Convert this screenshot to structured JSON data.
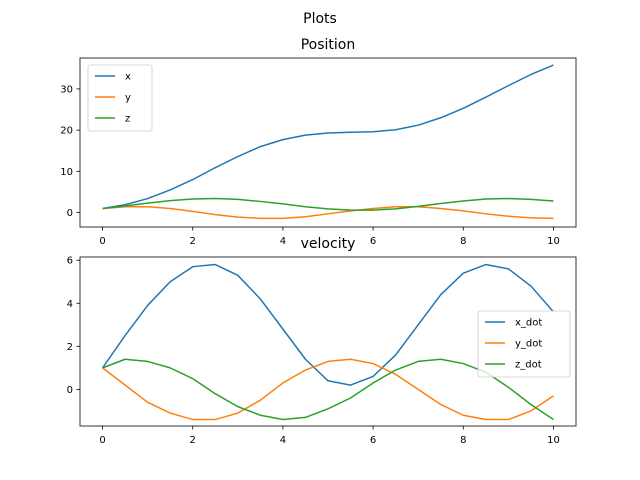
{
  "figure": {
    "suptitle": "Plots"
  },
  "chart_data": [
    {
      "type": "line",
      "title": "Position",
      "xlabel": "",
      "ylabel": "",
      "xlim": [
        -0.5,
        10.5
      ],
      "ylim": [
        -3.5,
        37.5
      ],
      "xticks": [
        0,
        2,
        4,
        6,
        8,
        10
      ],
      "yticks": [
        0,
        10,
        20,
        30
      ],
      "grid": false,
      "legend_position": "upper-left",
      "x": [
        0,
        0.5,
        1,
        1.5,
        2,
        2.5,
        3,
        3.5,
        4,
        4.5,
        5,
        5.5,
        6,
        6.5,
        7,
        7.5,
        8,
        8.5,
        9,
        9.5,
        10
      ],
      "series": [
        {
          "name": "x",
          "color": "#1f77b4",
          "values": [
            1.0,
            1.9,
            3.4,
            5.5,
            8.0,
            10.9,
            13.6,
            16.0,
            17.7,
            18.8,
            19.3,
            19.5,
            19.6,
            20.1,
            21.2,
            23.0,
            25.3,
            28.0,
            30.8,
            33.5,
            35.8
          ]
        },
        {
          "name": "y",
          "color": "#ff7f0e",
          "values": [
            1.0,
            1.4,
            1.4,
            1.0,
            0.3,
            -0.5,
            -1.1,
            -1.4,
            -1.4,
            -1.0,
            -0.3,
            0.4,
            1.0,
            1.4,
            1.4,
            1.0,
            0.4,
            -0.3,
            -0.9,
            -1.3,
            -1.4
          ]
        },
        {
          "name": "z",
          "color": "#2ca02c",
          "values": [
            1.0,
            1.6,
            2.3,
            2.9,
            3.3,
            3.4,
            3.2,
            2.7,
            2.1,
            1.4,
            0.9,
            0.6,
            0.6,
            0.9,
            1.5,
            2.2,
            2.8,
            3.3,
            3.4,
            3.2,
            2.8
          ]
        }
      ]
    },
    {
      "type": "line",
      "title": "velocity",
      "xlabel": "",
      "ylabel": "",
      "xlim": [
        -0.5,
        10.5
      ],
      "ylim": [
        -1.7,
        6.15
      ],
      "xticks": [
        0,
        2,
        4,
        6,
        8,
        10
      ],
      "yticks": [
        0,
        2,
        4,
        6
      ],
      "grid": false,
      "legend_position": "center-right",
      "x": [
        0,
        0.5,
        1,
        1.5,
        2,
        2.5,
        3,
        3.5,
        4,
        4.5,
        5,
        5.5,
        6,
        6.5,
        7,
        7.5,
        8,
        8.5,
        9,
        9.5,
        10
      ],
      "series": [
        {
          "name": "x_dot",
          "color": "#1f77b4",
          "values": [
            1.0,
            2.5,
            3.9,
            5.0,
            5.7,
            5.8,
            5.3,
            4.2,
            2.8,
            1.4,
            0.4,
            0.2,
            0.6,
            1.6,
            3.0,
            4.4,
            5.4,
            5.8,
            5.6,
            4.8,
            3.6
          ]
        },
        {
          "name": "y_dot",
          "color": "#ff7f0e",
          "values": [
            1.0,
            0.2,
            -0.6,
            -1.1,
            -1.4,
            -1.4,
            -1.1,
            -0.5,
            0.3,
            0.9,
            1.3,
            1.4,
            1.2,
            0.7,
            0.0,
            -0.7,
            -1.2,
            -1.4,
            -1.4,
            -1.0,
            -0.3
          ]
        },
        {
          "name": "z_dot",
          "color": "#2ca02c",
          "values": [
            1.0,
            1.4,
            1.3,
            1.0,
            0.5,
            -0.2,
            -0.8,
            -1.2,
            -1.4,
            -1.3,
            -0.9,
            -0.4,
            0.3,
            0.9,
            1.3,
            1.4,
            1.2,
            0.8,
            0.1,
            -0.7,
            -1.4
          ]
        }
      ]
    }
  ]
}
